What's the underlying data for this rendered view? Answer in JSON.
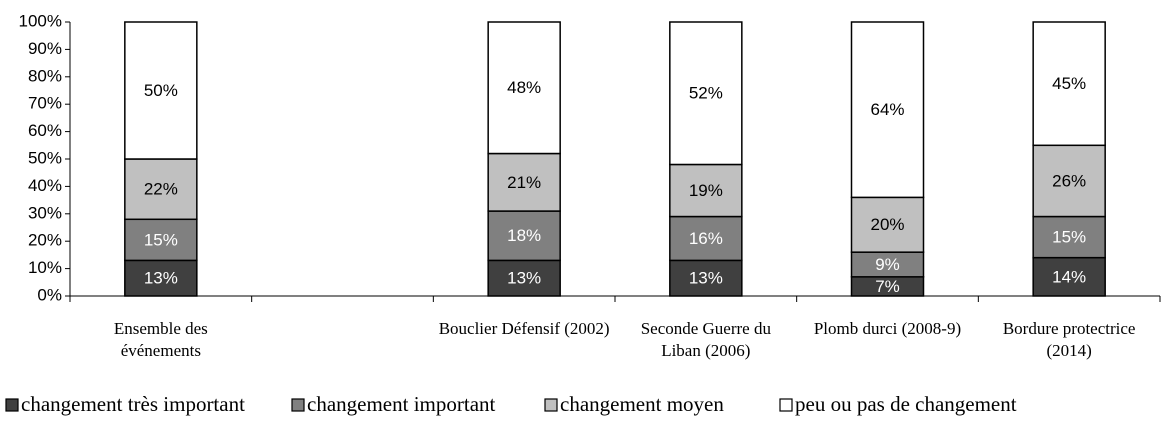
{
  "chart_data": {
    "type": "stacked_bar",
    "categories": [
      "Ensemble des événements",
      null,
      "Bouclier Défensif (2002)",
      "Seconde Guerre du Liban (2006)",
      "Plomb durci (2008-9)",
      "Bordure protectrice (2014)"
    ],
    "series": [
      {
        "name": "changement très important",
        "color": "#404040",
        "values": [
          13,
          null,
          13,
          13,
          7,
          14
        ],
        "value_labels": [
          "13%",
          null,
          "13%",
          "13%",
          "7%",
          "14%"
        ]
      },
      {
        "name": "changement important",
        "color": "#808080",
        "values": [
          15,
          null,
          18,
          16,
          9,
          15
        ],
        "value_labels": [
          "15%",
          null,
          "18%",
          "16%",
          "9%",
          "15%"
        ]
      },
      {
        "name": "changement moyen",
        "color": "#c0c0c0",
        "values": [
          22,
          null,
          21,
          19,
          20,
          26
        ],
        "value_labels": [
          "22%",
          null,
          "21%",
          "19%",
          "20%",
          "26%"
        ]
      },
      {
        "name": "peu ou pas de changement",
        "color": "#ffffff",
        "values": [
          50,
          null,
          48,
          52,
          64,
          45
        ],
        "value_labels": [
          "50%",
          null,
          "48%",
          "52%",
          "64%",
          "45%"
        ]
      }
    ],
    "ylim": [
      0,
      100
    ],
    "yticks": [
      {
        "value": 0,
        "label": "0%"
      },
      {
        "value": 10,
        "label": "10%"
      },
      {
        "value": 20,
        "label": "20%"
      },
      {
        "value": 30,
        "label": "30%"
      },
      {
        "value": 40,
        "label": "40%"
      },
      {
        "value": 50,
        "label": "50%"
      },
      {
        "value": 60,
        "label": "60%"
      },
      {
        "value": 70,
        "label": "70%"
      },
      {
        "value": 80,
        "label": "80%"
      },
      {
        "value": 90,
        "label": "90%"
      },
      {
        "value": 100,
        "label": "100%"
      }
    ],
    "legend": "bottom"
  }
}
